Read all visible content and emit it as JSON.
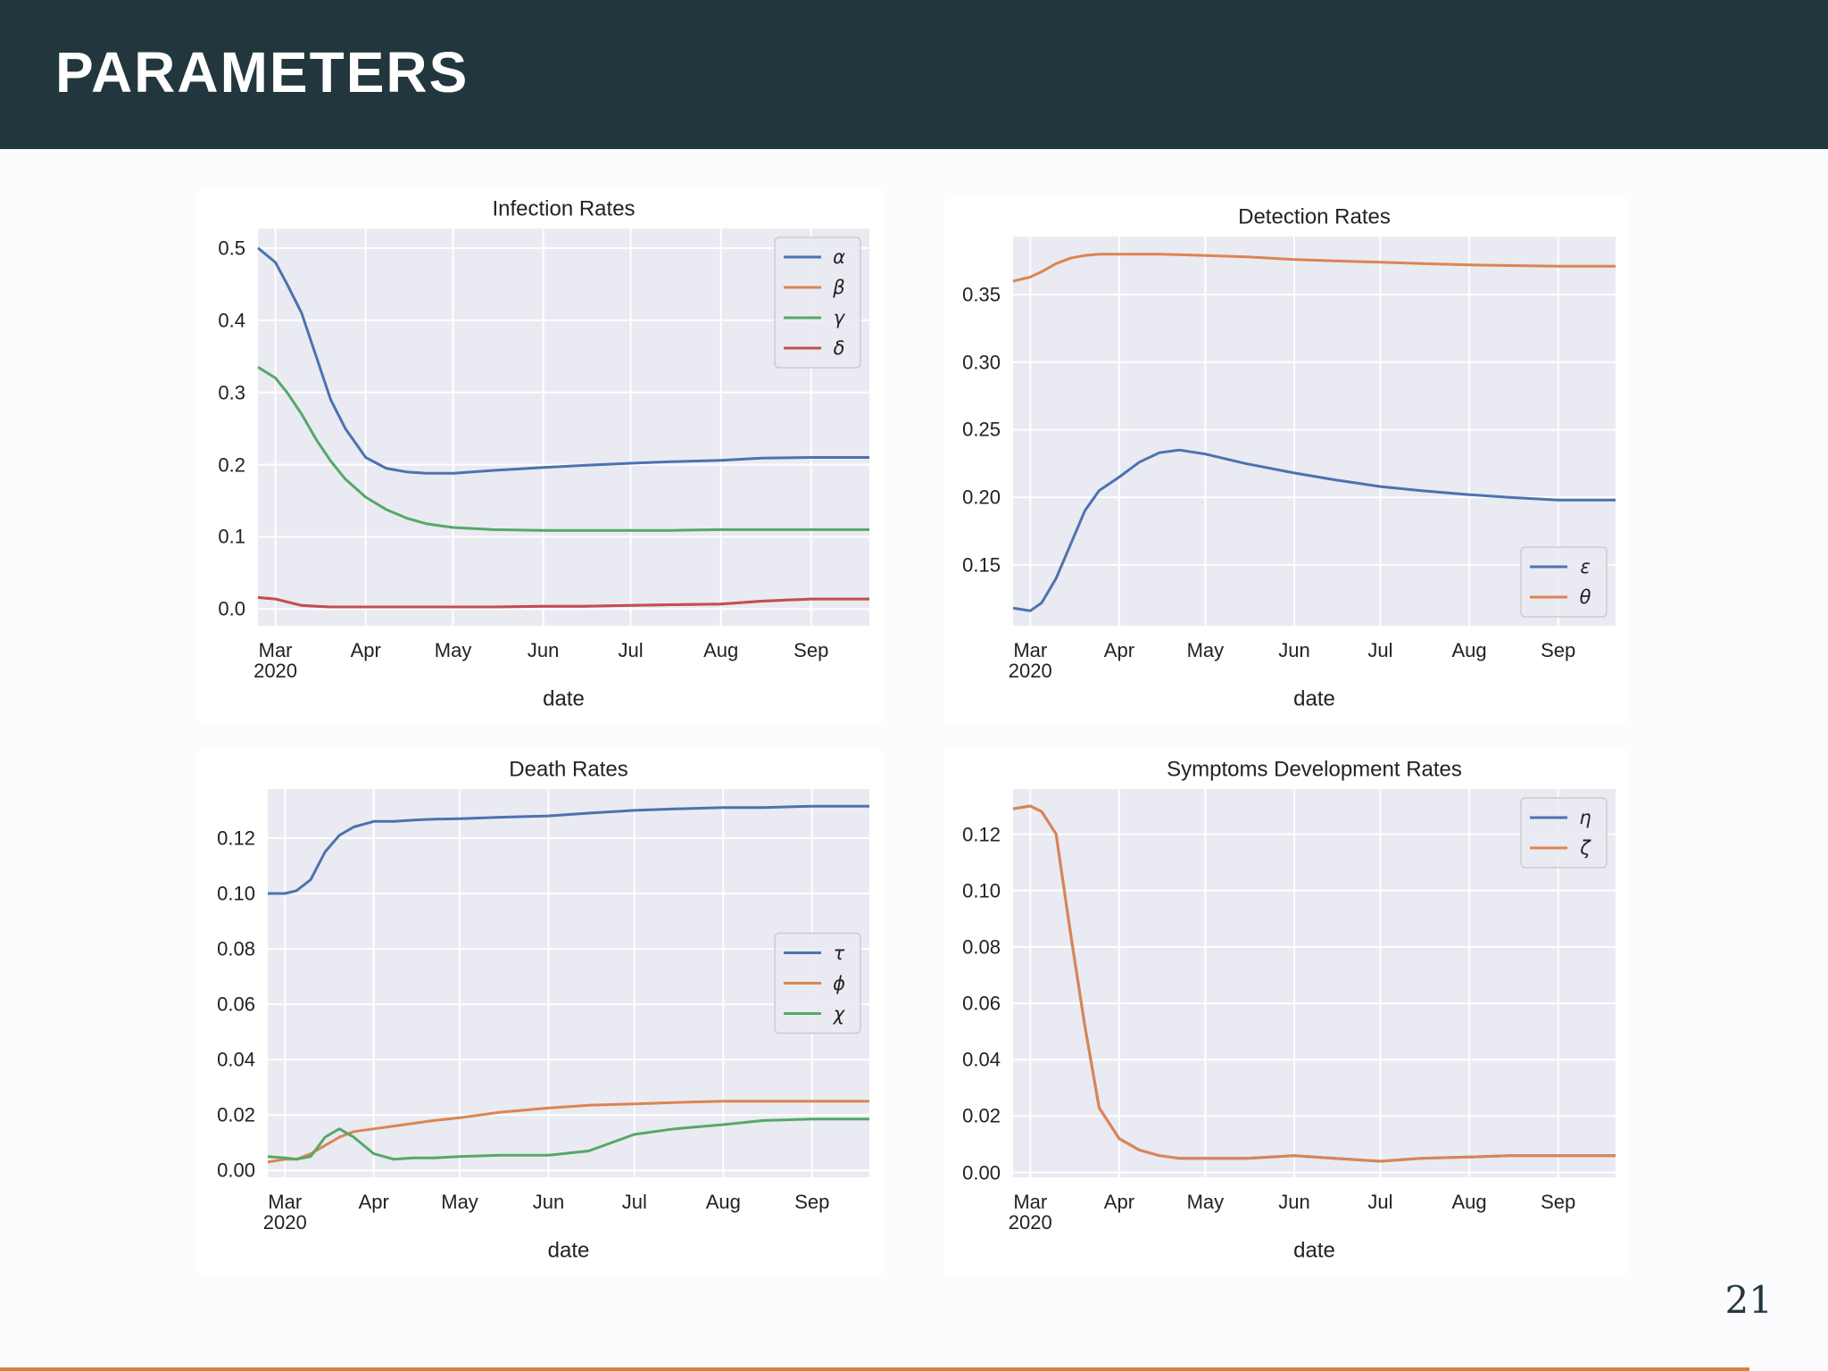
{
  "header": {
    "title": "PARAMETERS"
  },
  "page_number": "21",
  "chart_data": [
    {
      "type": "line",
      "title": "Infection Rates",
      "x_label": "date",
      "x": [
        "2020-02-24",
        "2020-03-01",
        "2020-03-05",
        "2020-03-10",
        "2020-03-15",
        "2020-03-20",
        "2020-03-25",
        "2020-04-01",
        "2020-04-08",
        "2020-04-15",
        "2020-04-22",
        "2020-05-01",
        "2020-05-15",
        "2020-06-01",
        "2020-06-15",
        "2020-07-01",
        "2020-07-15",
        "2020-08-01",
        "2020-08-15",
        "2020-09-01",
        "2020-09-10",
        "2020-09-21"
      ],
      "xlim": [
        "2020-02-24",
        "2020-09-21"
      ],
      "xticks": [
        {
          "value": "2020-03-01",
          "label": "Mar\n2020"
        },
        {
          "value": "2020-04-01",
          "label": "Apr"
        },
        {
          "value": "2020-05-01",
          "label": "May"
        },
        {
          "value": "2020-06-01",
          "label": "Jun"
        },
        {
          "value": "2020-07-01",
          "label": "Jul"
        },
        {
          "value": "2020-08-01",
          "label": "Aug"
        },
        {
          "value": "2020-09-01",
          "label": "Sep"
        }
      ],
      "ylim": [
        -0.023,
        0.527
      ],
      "yticks": [
        {
          "value": 0,
          "label": "0.0"
        },
        0.1,
        0.2,
        0.3,
        0.4,
        0.5
      ],
      "grid": true,
      "legend": "upper right",
      "series": [
        {
          "name": "α",
          "color": "#4c72b0",
          "values": [
            0.5,
            0.48,
            0.45,
            0.41,
            0.35,
            0.29,
            0.25,
            0.21,
            0.195,
            0.19,
            0.188,
            0.188,
            0.192,
            0.196,
            0.199,
            0.202,
            0.204,
            0.206,
            0.209,
            0.21,
            0.21,
            0.21
          ]
        },
        {
          "name": "β",
          "color": "#dd8452",
          "values": [
            0.016,
            0.014,
            0.01,
            0.005,
            0.004,
            0.003,
            0.003,
            0.003,
            0.003,
            0.003,
            0.003,
            0.003,
            0.003,
            0.004,
            0.004,
            0.005,
            0.006,
            0.007,
            0.011,
            0.014,
            0.014,
            0.014
          ]
        },
        {
          "name": "γ",
          "color": "#55a868",
          "values": [
            0.335,
            0.32,
            0.3,
            0.27,
            0.235,
            0.205,
            0.18,
            0.155,
            0.138,
            0.126,
            0.118,
            0.113,
            0.11,
            0.109,
            0.109,
            0.109,
            0.109,
            0.11,
            0.11,
            0.11,
            0.11,
            0.11
          ]
        },
        {
          "name": "δ",
          "color": "#c44e52",
          "values": [
            0.016,
            0.014,
            0.01,
            0.005,
            0.004,
            0.003,
            0.003,
            0.003,
            0.003,
            0.003,
            0.003,
            0.003,
            0.003,
            0.004,
            0.004,
            0.005,
            0.006,
            0.007,
            0.011,
            0.014,
            0.014,
            0.014
          ]
        }
      ]
    },
    {
      "type": "line",
      "title": "Detection Rates",
      "x_label": "date",
      "x": [
        "2020-02-24",
        "2020-03-01",
        "2020-03-05",
        "2020-03-10",
        "2020-03-15",
        "2020-03-20",
        "2020-03-25",
        "2020-04-01",
        "2020-04-08",
        "2020-04-15",
        "2020-04-22",
        "2020-05-01",
        "2020-05-15",
        "2020-06-01",
        "2020-06-15",
        "2020-07-01",
        "2020-07-15",
        "2020-08-01",
        "2020-08-15",
        "2020-09-01",
        "2020-09-10",
        "2020-09-21"
      ],
      "xlim": [
        "2020-02-24",
        "2020-09-21"
      ],
      "xticks": [
        {
          "value": "2020-03-01",
          "label": "Mar\n2020"
        },
        {
          "value": "2020-04-01",
          "label": "Apr"
        },
        {
          "value": "2020-05-01",
          "label": "May"
        },
        {
          "value": "2020-06-01",
          "label": "Jun"
        },
        {
          "value": "2020-07-01",
          "label": "Jul"
        },
        {
          "value": "2020-08-01",
          "label": "Aug"
        },
        {
          "value": "2020-09-01",
          "label": "Sep"
        }
      ],
      "ylim": [
        0.105,
        0.393
      ],
      "yticks": [
        0.15,
        {
          "value": 0.2,
          "label": "0.20"
        },
        0.25,
        {
          "value": 0.3,
          "label": "0.30"
        },
        0.35
      ],
      "grid": true,
      "legend": "lower right",
      "series": [
        {
          "name": "ε",
          "color": "#4c72b0",
          "values": [
            0.118,
            0.116,
            0.122,
            0.14,
            0.165,
            0.19,
            0.205,
            0.215,
            0.226,
            0.233,
            0.235,
            0.232,
            0.225,
            0.218,
            0.213,
            0.208,
            0.205,
            0.202,
            0.2,
            0.198,
            0.198,
            0.198
          ]
        },
        {
          "name": "θ",
          "color": "#dd8452",
          "values": [
            0.36,
            0.363,
            0.367,
            0.373,
            0.377,
            0.379,
            0.38,
            0.38,
            0.38,
            0.38,
            0.3795,
            0.379,
            0.378,
            0.376,
            0.375,
            0.374,
            0.373,
            0.372,
            0.3715,
            0.371,
            0.371,
            0.371
          ]
        }
      ]
    },
    {
      "type": "line",
      "title": "Death Rates",
      "x_label": "date",
      "x": [
        "2020-02-24",
        "2020-03-01",
        "2020-03-05",
        "2020-03-10",
        "2020-03-15",
        "2020-03-20",
        "2020-03-25",
        "2020-04-01",
        "2020-04-08",
        "2020-04-15",
        "2020-04-22",
        "2020-05-01",
        "2020-05-15",
        "2020-06-01",
        "2020-06-15",
        "2020-07-01",
        "2020-07-15",
        "2020-08-01",
        "2020-08-15",
        "2020-09-01",
        "2020-09-10",
        "2020-09-21"
      ],
      "xlim": [
        "2020-02-24",
        "2020-09-21"
      ],
      "xticks": [
        {
          "value": "2020-03-01",
          "label": "Mar\n2020"
        },
        {
          "value": "2020-04-01",
          "label": "Apr"
        },
        {
          "value": "2020-05-01",
          "label": "May"
        },
        {
          "value": "2020-06-01",
          "label": "Jun"
        },
        {
          "value": "2020-07-01",
          "label": "Jul"
        },
        {
          "value": "2020-08-01",
          "label": "Aug"
        },
        {
          "value": "2020-09-01",
          "label": "Sep"
        }
      ],
      "ylim": [
        -0.0025,
        0.1377
      ],
      "yticks": [
        {
          "value": 0,
          "label": "0.00"
        },
        0.02,
        0.04,
        0.06,
        0.08,
        {
          "value": 0.1,
          "label": "0.10"
        },
        0.12
      ],
      "grid": true,
      "legend": "center right",
      "series": [
        {
          "name": "τ",
          "color": "#4c72b0",
          "values": [
            0.1,
            0.1,
            0.101,
            0.105,
            0.115,
            0.121,
            0.124,
            0.126,
            0.126,
            0.1265,
            0.1268,
            0.127,
            0.1275,
            0.128,
            0.129,
            0.13,
            0.1305,
            0.131,
            0.131,
            0.1315,
            0.1315,
            0.1315
          ]
        },
        {
          "name": "ϕ",
          "color": "#dd8452",
          "values": [
            0.003,
            0.004,
            0.004,
            0.006,
            0.009,
            0.012,
            0.014,
            0.015,
            0.016,
            0.017,
            0.018,
            0.019,
            0.021,
            0.0225,
            0.0235,
            0.024,
            0.0245,
            0.025,
            0.025,
            0.025,
            0.025,
            0.025
          ]
        },
        {
          "name": "χ",
          "color": "#55a868",
          "values": [
            0.005,
            0.0045,
            0.004,
            0.005,
            0.012,
            0.015,
            0.012,
            0.006,
            0.004,
            0.0045,
            0.0045,
            0.005,
            0.0055,
            0.0055,
            0.007,
            0.013,
            0.015,
            0.0165,
            0.018,
            0.0185,
            0.0185,
            0.0185
          ]
        }
      ]
    },
    {
      "type": "line",
      "title": "Symptoms Development Rates",
      "x_label": "date",
      "x": [
        "2020-02-24",
        "2020-03-01",
        "2020-03-05",
        "2020-03-10",
        "2020-03-15",
        "2020-03-20",
        "2020-03-25",
        "2020-04-01",
        "2020-04-08",
        "2020-04-15",
        "2020-04-22",
        "2020-05-01",
        "2020-05-15",
        "2020-06-01",
        "2020-06-15",
        "2020-07-01",
        "2020-07-15",
        "2020-08-01",
        "2020-08-15",
        "2020-09-01",
        "2020-09-10",
        "2020-09-21"
      ],
      "xlim": [
        "2020-02-24",
        "2020-09-21"
      ],
      "xticks": [
        {
          "value": "2020-03-01",
          "label": "Mar\n2020"
        },
        {
          "value": "2020-04-01",
          "label": "Apr"
        },
        {
          "value": "2020-05-01",
          "label": "May"
        },
        {
          "value": "2020-06-01",
          "label": "Jun"
        },
        {
          "value": "2020-07-01",
          "label": "Jul"
        },
        {
          "value": "2020-08-01",
          "label": "Aug"
        },
        {
          "value": "2020-09-01",
          "label": "Sep"
        }
      ],
      "ylim": [
        -0.0017,
        0.136
      ],
      "yticks": [
        {
          "value": 0,
          "label": "0.00"
        },
        0.02,
        0.04,
        0.06,
        0.08,
        {
          "value": 0.1,
          "label": "0.10"
        },
        0.12
      ],
      "grid": true,
      "legend": "upper right",
      "series": [
        {
          "name": "η",
          "color": "#4c72b0",
          "values": [
            0.129,
            0.13,
            0.128,
            0.12,
            0.085,
            0.052,
            0.023,
            0.012,
            0.008,
            0.006,
            0.005,
            0.005,
            0.005,
            0.006,
            0.005,
            0.004,
            0.005,
            0.0055,
            0.006,
            0.006,
            0.006,
            0.006
          ]
        },
        {
          "name": "ζ",
          "color": "#dd8452",
          "values": [
            0.129,
            0.13,
            0.128,
            0.12,
            0.085,
            0.052,
            0.023,
            0.012,
            0.008,
            0.006,
            0.005,
            0.005,
            0.005,
            0.006,
            0.005,
            0.004,
            0.005,
            0.0055,
            0.006,
            0.006,
            0.006,
            0.006
          ]
        }
      ]
    }
  ]
}
